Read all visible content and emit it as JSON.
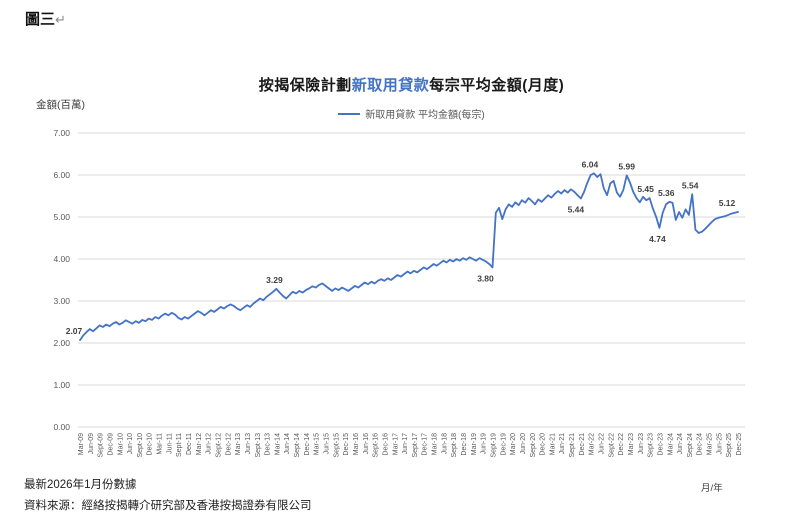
{
  "page": {
    "figure_label": "圖三",
    "return_mark": "↵"
  },
  "chart": {
    "title": {
      "prefix": "按揭保險計劃",
      "highlight": "新取用貸款",
      "suffix": "每宗平均金額(月度)"
    },
    "legend_label": "新取用貸款 平均金額(每宗)",
    "y_axis_title": "金額(百萬)",
    "x_axis_title": "月/年",
    "colors": {
      "line": "#4472C4",
      "grid": "#D9D9D9",
      "tick_text": "#595959",
      "data_label_text": "#404040",
      "title_highlight": "#4472C4"
    }
  },
  "chart_data": {
    "type": "line",
    "title": "按揭保險計劃新取用貸款每宗平均金額(月度)",
    "series_name": "新取用貸款 平均金額(每宗)",
    "frequency": "monthly",
    "x_start": "Mar-09",
    "x_end": "Dec-25",
    "ylim": [
      0,
      7
    ],
    "grid": "horizontal",
    "legend_position": "top-center",
    "y_ticks": [
      "7.00",
      "6.00",
      "5.00",
      "4.00",
      "3.00",
      "2.00",
      "1.00",
      "0.00"
    ],
    "x_tick_labels": [
      "Mar-09",
      "Jun-09",
      "Sept-09",
      "Dec-09",
      "Mar-10",
      "Jun-10",
      "Sept-10",
      "Dec-10",
      "Mar-11",
      "Jun-11",
      "Sept-11",
      "Dec-11",
      "Mar-12",
      "Jun-12",
      "Sept-12",
      "Dec-12",
      "Mar-13",
      "Jun-13",
      "Sept-13",
      "Dec-13",
      "Mar-14",
      "Jun-14",
      "Sept-14",
      "Dec-14",
      "Mar-15",
      "Jun-15",
      "Sept-15",
      "Dec-15",
      "Mar-16",
      "Jun-16",
      "Sept-16",
      "Dec-16",
      "Mar-17",
      "Jun-17",
      "Sept-17",
      "Dec-17",
      "Mar-18",
      "Jun-18",
      "Sept-18",
      "Dec-18",
      "Mar-19",
      "Jun-19",
      "Sept-19",
      "Dec-19",
      "Mar-20",
      "Jun-20",
      "Sept-20",
      "Dec-20",
      "Mar-21",
      "Jun-21",
      "Sept-21",
      "Dec-21",
      "Mar-22",
      "Jun-22",
      "Sept-22",
      "Dec-22",
      "Mar-23",
      "Jun-23",
      "Sept-23",
      "Dec-23",
      "Mar-24",
      "Jun-24",
      "Sept-24",
      "Dec-24",
      "Mar-25",
      "Jun-25",
      "Sept-25",
      "Dec-25"
    ],
    "values": [
      2.07,
      2.18,
      2.26,
      2.33,
      2.28,
      2.35,
      2.42,
      2.38,
      2.44,
      2.4,
      2.46,
      2.5,
      2.44,
      2.48,
      2.54,
      2.5,
      2.46,
      2.52,
      2.48,
      2.55,
      2.52,
      2.58,
      2.55,
      2.62,
      2.58,
      2.65,
      2.7,
      2.66,
      2.72,
      2.68,
      2.6,
      2.56,
      2.62,
      2.58,
      2.64,
      2.7,
      2.76,
      2.72,
      2.66,
      2.72,
      2.78,
      2.74,
      2.8,
      2.86,
      2.82,
      2.88,
      2.92,
      2.88,
      2.82,
      2.78,
      2.84,
      2.9,
      2.86,
      2.94,
      3.0,
      3.06,
      3.02,
      3.1,
      3.16,
      3.22,
      3.29,
      3.2,
      3.12,
      3.06,
      3.14,
      3.22,
      3.18,
      3.24,
      3.2,
      3.26,
      3.3,
      3.35,
      3.32,
      3.38,
      3.42,
      3.36,
      3.3,
      3.24,
      3.3,
      3.26,
      3.32,
      3.28,
      3.24,
      3.3,
      3.36,
      3.32,
      3.38,
      3.44,
      3.4,
      3.46,
      3.42,
      3.48,
      3.52,
      3.48,
      3.54,
      3.5,
      3.56,
      3.62,
      3.58,
      3.64,
      3.7,
      3.66,
      3.72,
      3.68,
      3.74,
      3.8,
      3.76,
      3.82,
      3.88,
      3.84,
      3.9,
      3.96,
      3.92,
      3.98,
      3.94,
      4.0,
      3.96,
      4.02,
      3.98,
      4.04,
      4.0,
      3.96,
      4.02,
      3.98,
      3.94,
      3.88,
      3.8,
      5.1,
      5.22,
      4.95,
      5.18,
      5.3,
      5.24,
      5.35,
      5.28,
      5.4,
      5.34,
      5.45,
      5.38,
      5.3,
      5.42,
      5.36,
      5.44,
      5.52,
      5.46,
      5.55,
      5.62,
      5.56,
      5.64,
      5.58,
      5.66,
      5.6,
      5.52,
      5.44,
      5.6,
      5.82,
      6.0,
      6.04,
      5.95,
      6.02,
      5.68,
      5.52,
      5.8,
      5.86,
      5.58,
      5.48,
      5.65,
      5.99,
      5.82,
      5.6,
      5.45,
      5.35,
      5.48,
      5.4,
      5.45,
      5.2,
      5.0,
      4.74,
      5.1,
      5.3,
      5.36,
      5.34,
      4.93,
      5.12,
      4.98,
      5.18,
      5.05,
      5.54,
      4.7,
      4.62,
      4.65,
      4.72,
      4.8,
      4.88,
      4.95,
      4.98,
      5.0,
      5.02,
      5.05,
      5.08,
      5.1,
      5.12
    ],
    "point_labels": [
      {
        "index": 0,
        "text": "2.07",
        "placement": "above",
        "dx": -6
      },
      {
        "index": 60,
        "text": "3.29",
        "placement": "above",
        "dx": -2
      },
      {
        "index": 126,
        "text": "3.80",
        "placement": "below",
        "dx": -7
      },
      {
        "index": 153,
        "text": "5.44",
        "placement": "below",
        "dx": -5
      },
      {
        "index": 157,
        "text": "6.04",
        "placement": "above",
        "dx": -4
      },
      {
        "index": 167,
        "text": "5.99",
        "placement": "above",
        "dx": 0
      },
      {
        "index": 174,
        "text": "5.45",
        "placement": "above",
        "dx": -4
      },
      {
        "index": 177,
        "text": "4.74",
        "placement": "below",
        "dx": -2
      },
      {
        "index": 180,
        "text": "5.36",
        "placement": "above",
        "dx": -3
      },
      {
        "index": 187,
        "text": "5.54",
        "placement": "above",
        "dx": -2
      },
      {
        "index": 201,
        "text": "5.12",
        "placement": "above",
        "dx": -11
      }
    ]
  },
  "footer": {
    "latest": "最新2026年1月份數據",
    "source": "資料來源：經絡按揭轉介研究部及香港按揭證券有限公司"
  }
}
